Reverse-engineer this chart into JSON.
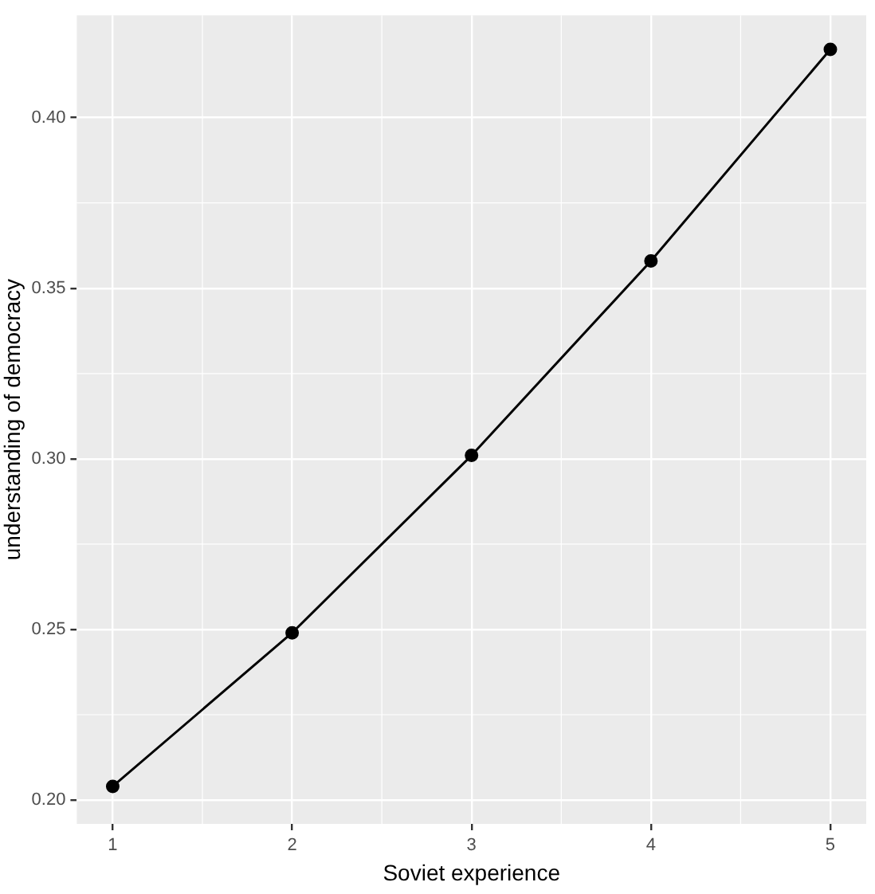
{
  "chart_data": {
    "type": "line",
    "xlabel": "Soviet experience",
    "ylabel": "understanding of democracy",
    "x": [
      1,
      2,
      3,
      4,
      5
    ],
    "series": [
      {
        "color": "#000000",
        "values": [
          0.204,
          0.249,
          0.301,
          0.358,
          0.42
        ]
      }
    ],
    "xlim": [
      0.8,
      5.2
    ],
    "xticks": [
      1,
      2,
      3,
      4,
      5
    ],
    "ylim": [
      0.193,
      0.43
    ],
    "yticks": [
      {
        "value": 0.2,
        "label": "0.20"
      },
      {
        "value": 0.25,
        "label": "0.25"
      },
      {
        "value": 0.3,
        "label": "0.30"
      },
      {
        "value": 0.35,
        "label": "0.35"
      },
      {
        "value": 0.4,
        "label": "0.40"
      }
    ],
    "grid": true,
    "marker": "circle",
    "line_style": "solid",
    "legend": false
  }
}
